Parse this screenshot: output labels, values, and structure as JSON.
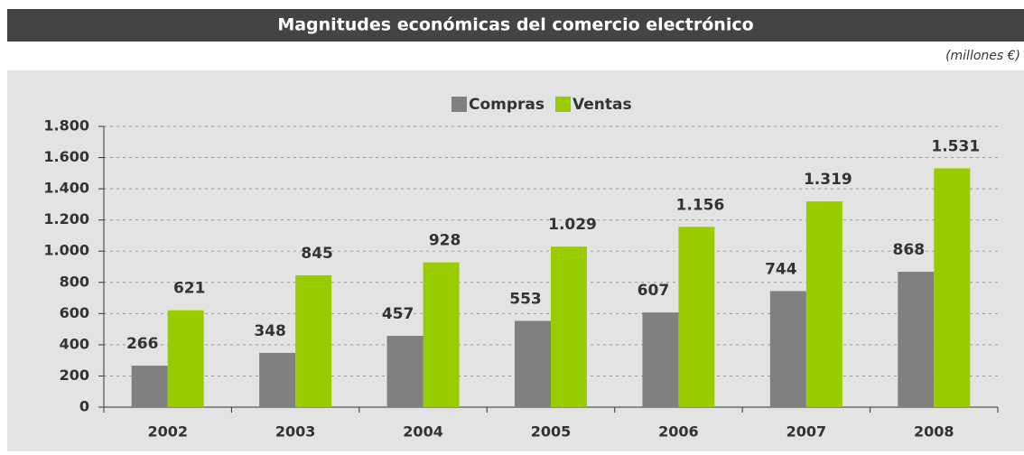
{
  "chart_data": {
    "type": "bar",
    "title": "Magnitudes económicas del comercio electrónico",
    "subtitle": "(millones €)",
    "categories": [
      "2002",
      "2003",
      "2004",
      "2005",
      "2006",
      "2007",
      "2008"
    ],
    "series": [
      {
        "name": "Compras",
        "color": "#808080",
        "values": [
          266,
          348,
          457,
          553,
          607,
          744,
          868
        ]
      },
      {
        "name": "Ventas",
        "color": "#99cc00",
        "values": [
          621,
          845,
          928,
          1029,
          1156,
          1319,
          1531
        ],
        "value_labels": [
          "621",
          "845",
          "928",
          "1.029",
          "1.156",
          "1.319",
          "1.531"
        ]
      }
    ],
    "ylim": [
      0,
      1800
    ],
    "yticks": [
      0,
      200,
      400,
      600,
      800,
      {
        "value": 1000,
        "label": "1.000"
      },
      {
        "value": 1200,
        "label": "1.200"
      },
      {
        "value": 1400,
        "label": "1.400"
      },
      {
        "value": 1600,
        "label": "1.600"
      },
      {
        "value": 1800,
        "label": "1.800"
      }
    ],
    "grid": true,
    "legend": "top"
  }
}
